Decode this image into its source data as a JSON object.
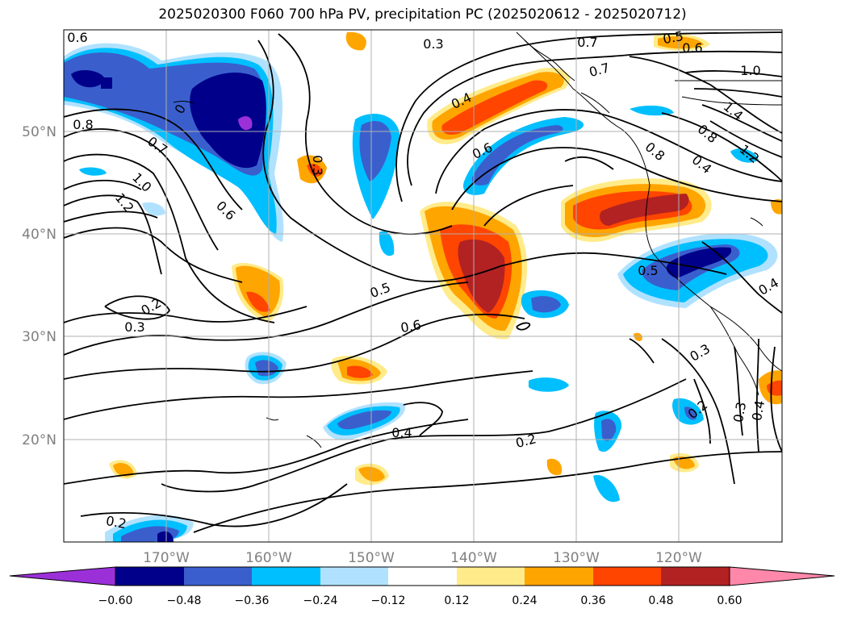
{
  "title": "2025020300 F060 700 hPa PV, precipitation PC (2025020612 - 2025020712)",
  "map": {
    "lon_range": [
      -180,
      -110
    ],
    "lat_range": [
      10,
      60
    ],
    "grid": true,
    "lat_labels": [
      "50°N",
      "40°N",
      "30°N",
      "20°N"
    ],
    "lon_labels": [
      "170°W",
      "160°W",
      "150°W",
      "140°W",
      "130°W",
      "120°W"
    ],
    "label_color": "#808080"
  },
  "colorbar": {
    "colors": [
      "#9b30d9",
      "#00008b",
      "#3a5fcd",
      "#00bfff",
      "#b0e2ff",
      "#ffffff",
      "#ffeb8a",
      "#ffa500",
      "#ff4500",
      "#b22222",
      "#ff88aa"
    ],
    "tick_labels": [
      "−0.60",
      "−0.48",
      "−0.36",
      "−0.24",
      "−0.12",
      "0.12",
      "0.24",
      "0.36",
      "0.48",
      "0.60"
    ],
    "extend": "both"
  },
  "contour_labels": [
    "0.6",
    "0.8",
    "0.7",
    "1.0",
    "1.2",
    "0.6",
    "0.2",
    "0.3",
    "0.3",
    "0.5",
    "0.6",
    "0.4",
    "0.2",
    "0.4",
    "0.6",
    "0.7",
    "0.7",
    "0.5",
    "0.6",
    "1.0",
    "1.4",
    "0.8",
    "0.4",
    "1.2",
    "0.8",
    "0.5",
    "0.4",
    "0.3",
    "0.2",
    "0.3",
    "0.4",
    "0.2",
    "0.3",
    "0"
  ]
}
